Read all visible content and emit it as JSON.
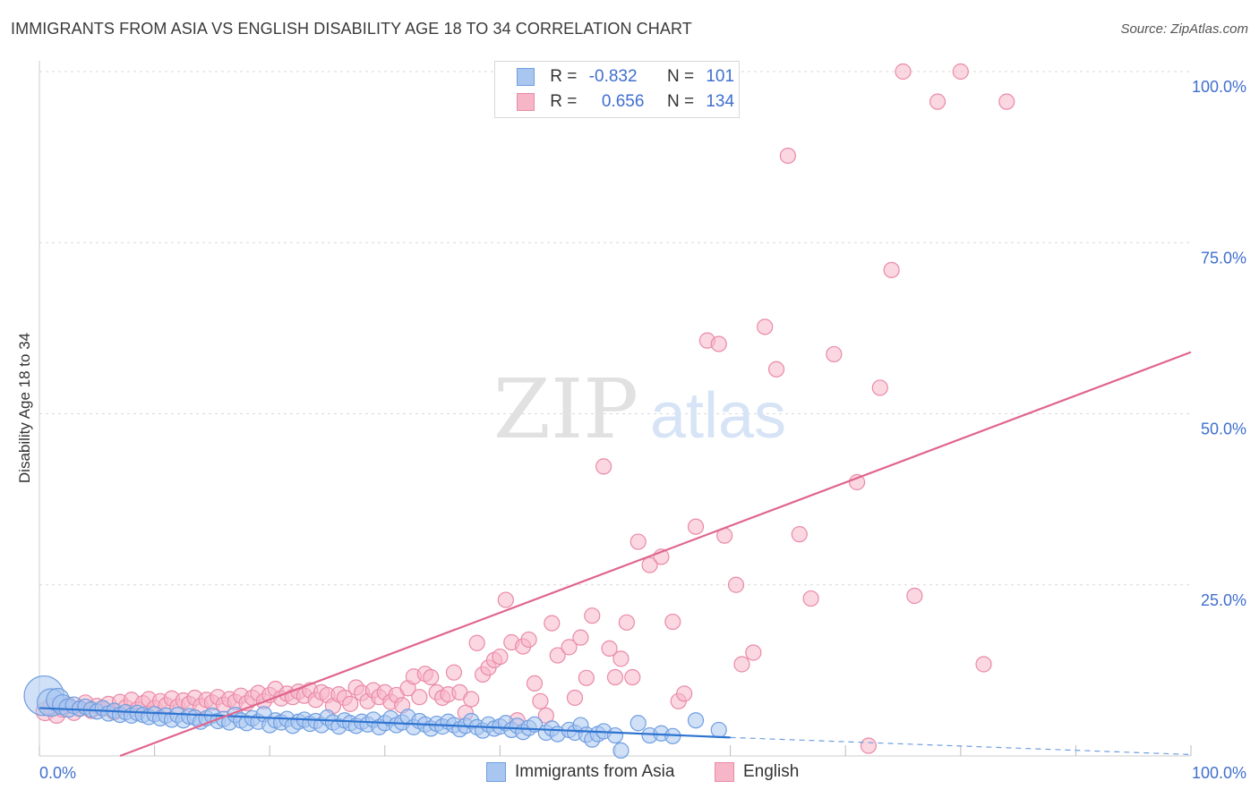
{
  "header": {
    "title": "IMMIGRANTS FROM ASIA VS ENGLISH DISABILITY AGE 18 TO 34 CORRELATION CHART",
    "source": "Source: ZipAtlas.com"
  },
  "watermark": {
    "zip": "ZIP",
    "atlas": "atlas"
  },
  "legend_top": {
    "rows": [
      {
        "r_label": "R =",
        "r_value": "-0.832",
        "n_label": "N =",
        "n_value": "101",
        "color": "#a9c6f0"
      },
      {
        "r_label": "R =",
        "r_value": "0.656",
        "n_label": "N =",
        "n_value": "134",
        "color": "#f7b6c8"
      }
    ]
  },
  "legend_bottom": {
    "items": [
      {
        "label": "Immigrants from Asia",
        "color": "#a9c6f0"
      },
      {
        "label": "English",
        "color": "#f7b6c8"
      }
    ]
  },
  "colors": {
    "blue_fill": "#a9c6f0",
    "blue_stroke": "#6f9ee0",
    "blue_line": "#2e74d0",
    "pink_fill": "#f7b6c8",
    "pink_stroke": "#e98aa8",
    "pink_line": "#e0658d",
    "tick_label": "#3f6fcf",
    "grid": "#d9d9d9"
  },
  "chart_data": {
    "type": "scatter",
    "title": "IMMIGRANTS FROM ASIA VS ENGLISH DISABILITY AGE 18 TO 34 CORRELATION CHART",
    "xlabel": "",
    "ylabel": "Disability Age 18 to 34",
    "xlim": [
      0,
      100
    ],
    "ylim": [
      0,
      100
    ],
    "x_tick_labels": [
      "0.0%",
      "100.0%"
    ],
    "y_ticks": [
      25,
      50,
      75,
      100
    ],
    "y_tick_labels": [
      "25.0%",
      "50.0%",
      "75.0%",
      "100.0%"
    ],
    "grid": true,
    "legend_placement": "top-center",
    "series": [
      {
        "name": "Immigrants from Asia",
        "r": -0.832,
        "n": 101,
        "trend": {
          "x": [
            0,
            60
          ],
          "y": [
            7.0,
            2.7
          ],
          "dashed_to": [
            100,
            0.2
          ]
        },
        "points": [
          [
            0.4,
            8.8,
            2.6
          ],
          [
            1.0,
            7.8,
            1.8
          ],
          [
            1.6,
            8.2,
            1.5
          ],
          [
            2.0,
            7.5,
            1.3
          ],
          [
            2.5,
            7.0,
            1.2
          ],
          [
            3.0,
            7.4,
            1.1
          ],
          [
            3.5,
            6.9,
            1.0
          ],
          [
            4.0,
            7.2,
            1.0
          ],
          [
            4.5,
            6.8,
            1.0
          ],
          [
            5.0,
            6.5,
            1.0
          ],
          [
            5.5,
            7.0,
            1.0
          ],
          [
            6.0,
            6.2,
            1.0
          ],
          [
            6.5,
            6.6,
            1.0
          ],
          [
            7.0,
            6.0,
            1.0
          ],
          [
            7.5,
            6.4,
            1.0
          ],
          [
            8.0,
            5.9,
            1.0
          ],
          [
            8.5,
            6.3,
            1.0
          ],
          [
            9.0,
            6.0,
            1.0
          ],
          [
            9.5,
            5.7,
            1.0
          ],
          [
            10.0,
            6.1,
            1.0
          ],
          [
            10.5,
            5.5,
            1.0
          ],
          [
            11.0,
            5.9,
            1.0
          ],
          [
            11.5,
            5.3,
            1.0
          ],
          [
            12.0,
            6.0,
            1.0
          ],
          [
            12.5,
            5.2,
            1.0
          ],
          [
            13.0,
            5.8,
            1.0
          ],
          [
            13.5,
            5.6,
            1.0
          ],
          [
            14.0,
            5.0,
            1.0
          ],
          [
            14.5,
            5.5,
            1.0
          ],
          [
            15.0,
            5.9,
            1.0
          ],
          [
            15.5,
            5.1,
            1.0
          ],
          [
            16.0,
            5.4,
            1.0
          ],
          [
            16.5,
            4.9,
            1.0
          ],
          [
            17.0,
            6.0,
            1.0
          ],
          [
            17.5,
            5.2,
            1.0
          ],
          [
            18.0,
            4.8,
            1.0
          ],
          [
            18.5,
            5.5,
            1.0
          ],
          [
            19.0,
            5.0,
            1.0
          ],
          [
            19.5,
            6.1,
            1.0
          ],
          [
            20.0,
            4.5,
            1.0
          ],
          [
            20.5,
            5.2,
            1.0
          ],
          [
            21.0,
            4.9,
            1.0
          ],
          [
            21.5,
            5.4,
            1.0
          ],
          [
            22.0,
            4.4,
            1.0
          ],
          [
            22.5,
            5.0,
            1.0
          ],
          [
            23.0,
            5.3,
            1.0
          ],
          [
            23.5,
            4.7,
            1.0
          ],
          [
            24.0,
            5.1,
            1.0
          ],
          [
            24.5,
            4.5,
            1.0
          ],
          [
            25.0,
            5.6,
            1.0
          ],
          [
            25.5,
            4.9,
            1.0
          ],
          [
            26.0,
            4.3,
            1.0
          ],
          [
            26.5,
            5.2,
            1.0
          ],
          [
            27.0,
            4.8,
            1.0
          ],
          [
            27.5,
            4.4,
            1.0
          ],
          [
            28.0,
            5.0,
            1.0
          ],
          [
            28.5,
            4.6,
            1.0
          ],
          [
            29.0,
            5.3,
            1.0
          ],
          [
            29.5,
            4.2,
            1.0
          ],
          [
            30.0,
            4.8,
            1.0
          ],
          [
            30.5,
            5.5,
            1.0
          ],
          [
            31.0,
            4.5,
            1.0
          ],
          [
            31.5,
            4.9,
            1.0
          ],
          [
            32.0,
            5.7,
            1.0
          ],
          [
            32.5,
            4.2,
            1.0
          ],
          [
            33.0,
            5.1,
            1.0
          ],
          [
            33.5,
            4.6,
            1.0
          ],
          [
            34.0,
            4.0,
            1.0
          ],
          [
            34.5,
            4.7,
            1.0
          ],
          [
            35.0,
            4.3,
            1.0
          ],
          [
            35.5,
            5.0,
            1.0
          ],
          [
            36.0,
            4.5,
            1.0
          ],
          [
            36.5,
            3.9,
            1.0
          ],
          [
            37.0,
            4.4,
            1.0
          ],
          [
            37.5,
            5.1,
            1.0
          ],
          [
            38.0,
            4.2,
            1.0
          ],
          [
            38.5,
            3.7,
            1.0
          ],
          [
            39.0,
            4.6,
            1.0
          ],
          [
            39.5,
            4.0,
            1.0
          ],
          [
            40.0,
            4.3,
            1.0
          ],
          [
            40.5,
            4.8,
            1.0
          ],
          [
            41.0,
            3.8,
            1.0
          ],
          [
            41.5,
            4.4,
            1.0
          ],
          [
            42.0,
            3.5,
            1.0
          ],
          [
            42.5,
            4.1,
            1.0
          ],
          [
            43.0,
            4.6,
            1.0
          ],
          [
            44.0,
            3.4,
            1.0
          ],
          [
            44.5,
            4.0,
            1.0
          ],
          [
            45.0,
            3.2,
            1.0
          ],
          [
            46.0,
            3.8,
            1.0
          ],
          [
            46.5,
            3.4,
            1.0
          ],
          [
            47.0,
            4.5,
            1.0
          ],
          [
            47.5,
            3.1,
            1.0
          ],
          [
            48.0,
            2.4,
            1.0
          ],
          [
            48.5,
            3.2,
            1.0
          ],
          [
            49.0,
            3.6,
            1.0
          ],
          [
            50.0,
            3.0,
            1.0
          ],
          [
            50.5,
            0.8,
            1.0
          ],
          [
            52.0,
            4.8,
            1.0
          ],
          [
            53.0,
            3.0,
            1.0
          ],
          [
            54.0,
            3.3,
            1.0
          ],
          [
            55.0,
            2.9,
            1.0
          ],
          [
            57.0,
            5.2,
            1.0
          ],
          [
            59.0,
            3.8,
            1.0
          ]
        ]
      },
      {
        "name": "English",
        "r": 0.656,
        "n": 134,
        "trend": {
          "x": [
            7,
            100
          ],
          "y": [
            0,
            59
          ]
        },
        "points": [
          [
            0.5,
            6.5,
            1.2
          ],
          [
            1.0,
            7.2,
            1.1
          ],
          [
            1.5,
            6.0,
            1.1
          ],
          [
            2.0,
            6.8,
            1.0
          ],
          [
            2.5,
            7.5,
            1.0
          ],
          [
            3.0,
            6.3,
            1.0
          ],
          [
            3.5,
            7.0,
            1.0
          ],
          [
            4.0,
            7.8,
            1.0
          ],
          [
            4.5,
            6.6,
            1.0
          ],
          [
            5.0,
            7.3,
            1.0
          ],
          [
            5.5,
            6.9,
            1.0
          ],
          [
            6.0,
            7.6,
            1.0
          ],
          [
            6.5,
            6.4,
            1.0
          ],
          [
            7.0,
            7.9,
            1.0
          ],
          [
            7.5,
            7.1,
            1.0
          ],
          [
            8.0,
            8.2,
            1.0
          ],
          [
            8.5,
            6.8,
            1.0
          ],
          [
            9.0,
            7.7,
            1.0
          ],
          [
            9.5,
            8.3,
            1.0
          ],
          [
            10.0,
            7.0,
            1.0
          ],
          [
            10.5,
            8.0,
            1.0
          ],
          [
            11.0,
            7.4,
            1.0
          ],
          [
            11.5,
            8.4,
            1.0
          ],
          [
            12.0,
            7.2,
            1.0
          ],
          [
            12.5,
            8.1,
            1.0
          ],
          [
            13.0,
            7.6,
            1.0
          ],
          [
            13.5,
            8.5,
            1.0
          ],
          [
            14.0,
            7.3,
            1.0
          ],
          [
            14.5,
            8.2,
            1.0
          ],
          [
            15.0,
            7.8,
            1.0
          ],
          [
            15.5,
            8.6,
            1.0
          ],
          [
            16.0,
            7.5,
            1.0
          ],
          [
            16.5,
            8.3,
            1.0
          ],
          [
            17.0,
            7.9,
            1.0
          ],
          [
            17.5,
            8.8,
            1.0
          ],
          [
            18.0,
            7.7,
            1.0
          ],
          [
            18.5,
            8.5,
            1.0
          ],
          [
            19.0,
            9.2,
            1.0
          ],
          [
            19.5,
            8.0,
            1.0
          ],
          [
            20.0,
            8.9,
            1.0
          ],
          [
            20.5,
            9.8,
            1.0
          ],
          [
            21.0,
            8.4,
            1.0
          ],
          [
            21.5,
            9.1,
            1.0
          ],
          [
            22.0,
            8.6,
            1.0
          ],
          [
            22.5,
            9.4,
            1.0
          ],
          [
            23.0,
            8.8,
            1.0
          ],
          [
            23.5,
            9.6,
            1.0
          ],
          [
            24.0,
            8.2,
            1.0
          ],
          [
            24.5,
            9.3,
            1.0
          ],
          [
            25.0,
            8.9,
            1.0
          ],
          [
            25.5,
            7.3,
            1.0
          ],
          [
            26.0,
            9.0,
            1.0
          ],
          [
            26.5,
            8.5,
            1.0
          ],
          [
            27.0,
            7.6,
            1.0
          ],
          [
            27.5,
            10.0,
            1.0
          ],
          [
            28.0,
            9.2,
            1.0
          ],
          [
            28.5,
            8.0,
            1.0
          ],
          [
            29.0,
            9.6,
            1.0
          ],
          [
            29.5,
            8.6,
            1.0
          ],
          [
            30.0,
            9.3,
            1.0
          ],
          [
            30.5,
            7.9,
            1.0
          ],
          [
            31.0,
            8.9,
            1.0
          ],
          [
            31.5,
            7.4,
            1.0
          ],
          [
            32.0,
            9.9,
            1.0
          ],
          [
            32.5,
            11.6,
            1.0
          ],
          [
            33.0,
            8.6,
            1.0
          ],
          [
            33.5,
            12.0,
            1.0
          ],
          [
            34.0,
            11.5,
            1.0
          ],
          [
            34.5,
            9.3,
            1.0
          ],
          [
            35.0,
            8.5,
            1.0
          ],
          [
            35.5,
            9.0,
            1.0
          ],
          [
            36.0,
            12.2,
            1.0
          ],
          [
            36.5,
            9.3,
            1.0
          ],
          [
            37.0,
            6.3,
            1.0
          ],
          [
            37.5,
            8.3,
            1.0
          ],
          [
            38.0,
            16.5,
            1.0
          ],
          [
            38.5,
            11.9,
            1.0
          ],
          [
            39.0,
            12.9,
            1.0
          ],
          [
            39.5,
            14.0,
            1.0
          ],
          [
            40.0,
            14.5,
            1.0
          ],
          [
            40.5,
            22.8,
            1.0
          ],
          [
            41.0,
            16.6,
            1.0
          ],
          [
            41.5,
            5.2,
            1.0
          ],
          [
            42.0,
            16.0,
            1.0
          ],
          [
            42.5,
            17.0,
            1.0
          ],
          [
            43.0,
            10.6,
            1.0
          ],
          [
            43.5,
            8.0,
            1.0
          ],
          [
            44.0,
            5.9,
            1.0
          ],
          [
            44.5,
            19.4,
            1.0
          ],
          [
            45.0,
            14.7,
            1.0
          ],
          [
            46.0,
            15.9,
            1.0
          ],
          [
            46.5,
            8.5,
            1.0
          ],
          [
            47.0,
            17.3,
            1.0
          ],
          [
            47.5,
            11.4,
            1.0
          ],
          [
            48.0,
            20.5,
            1.0
          ],
          [
            49.0,
            42.3,
            1.0
          ],
          [
            49.5,
            15.7,
            1.0
          ],
          [
            50.0,
            11.5,
            1.0
          ],
          [
            50.5,
            14.2,
            1.0
          ],
          [
            51.0,
            19.5,
            1.0
          ],
          [
            51.5,
            11.5,
            1.0
          ],
          [
            52.0,
            31.3,
            1.0
          ],
          [
            53.0,
            27.9,
            1.0
          ],
          [
            54.0,
            29.1,
            1.0
          ],
          [
            55.0,
            19.6,
            1.0
          ],
          [
            55.5,
            8.0,
            1.0
          ],
          [
            56.0,
            9.1,
            1.0
          ],
          [
            57.0,
            33.5,
            1.0
          ],
          [
            58.0,
            60.7,
            1.0
          ],
          [
            59.0,
            60.2,
            1.0
          ],
          [
            59.5,
            32.2,
            1.0
          ],
          [
            60.5,
            25.0,
            1.0
          ],
          [
            61.0,
            13.4,
            1.0
          ],
          [
            62.0,
            15.1,
            1.0
          ],
          [
            63.0,
            62.7,
            1.0
          ],
          [
            64.0,
            56.5,
            1.0
          ],
          [
            65.0,
            87.7,
            1.0
          ],
          [
            66.0,
            32.4,
            1.0
          ],
          [
            67.0,
            23.0,
            1.0
          ],
          [
            69.0,
            58.7,
            1.0
          ],
          [
            71.0,
            40.0,
            1.0
          ],
          [
            72.0,
            1.5,
            1.0
          ],
          [
            73.0,
            53.8,
            1.0
          ],
          [
            74.0,
            71.0,
            1.0
          ],
          [
            75.0,
            100.0,
            1.0
          ],
          [
            76.0,
            23.4,
            1.0
          ],
          [
            78.0,
            95.6,
            1.0
          ],
          [
            80.0,
            100.0,
            1.0
          ],
          [
            82.0,
            13.4,
            1.0
          ],
          [
            84.0,
            95.6,
            1.0
          ]
        ]
      }
    ]
  }
}
